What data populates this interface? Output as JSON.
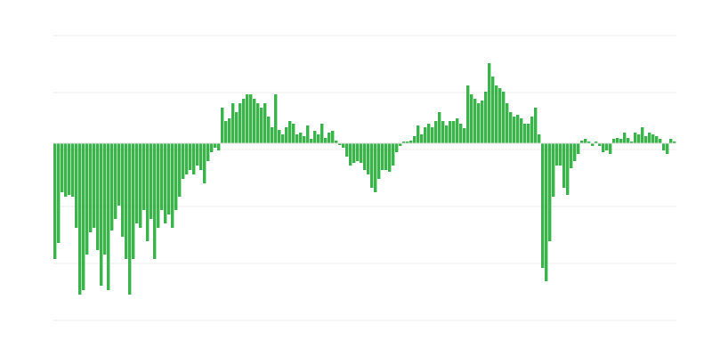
{
  "chart_data": {
    "type": "bar",
    "title": "",
    "xlabel": "",
    "ylabel": "",
    "ylim": [
      -199,
      121
    ],
    "gridlines": [
      121,
      57,
      -7,
      -71,
      -135,
      -199
    ],
    "grid": true,
    "legend": "none",
    "bar_color": "#39b34a",
    "values": [
      -130,
      -112,
      -55,
      -60,
      -58,
      -60,
      -95,
      -170,
      -165,
      -125,
      -100,
      -95,
      -120,
      -160,
      -125,
      -165,
      -98,
      -85,
      -70,
      -105,
      -130,
      -170,
      -130,
      -90,
      -95,
      -75,
      -110,
      -85,
      -130,
      -95,
      -75,
      -90,
      -80,
      -95,
      -75,
      -60,
      -40,
      -35,
      -30,
      -35,
      -25,
      -30,
      -45,
      -20,
      -10,
      -5,
      -8,
      40,
      25,
      28,
      45,
      35,
      45,
      50,
      55,
      55,
      50,
      45,
      40,
      45,
      30,
      18,
      55,
      15,
      10,
      18,
      25,
      22,
      10,
      12,
      8,
      20,
      5,
      14,
      10,
      22,
      6,
      12,
      14,
      3,
      -2,
      -5,
      -15,
      -25,
      -22,
      -20,
      -22,
      -30,
      -35,
      -50,
      -55,
      -40,
      -30,
      -30,
      -32,
      -25,
      -10,
      -3,
      2,
      2,
      3,
      8,
      20,
      10,
      18,
      22,
      18,
      25,
      35,
      25,
      20,
      25,
      25,
      28,
      22,
      17,
      65,
      55,
      50,
      45,
      48,
      58,
      90,
      75,
      65,
      62,
      58,
      45,
      35,
      30,
      32,
      28,
      22,
      22,
      30,
      40,
      10,
      -140,
      -155,
      -110,
      -60,
      -25,
      -25,
      -50,
      -58,
      -28,
      -20,
      -12,
      3,
      5,
      2,
      -3,
      2,
      -3,
      -10,
      -8,
      -12,
      5,
      6,
      5,
      12,
      6,
      2,
      12,
      10,
      18,
      8,
      12,
      10,
      8,
      5,
      -8,
      -12,
      5,
      2
    ]
  }
}
